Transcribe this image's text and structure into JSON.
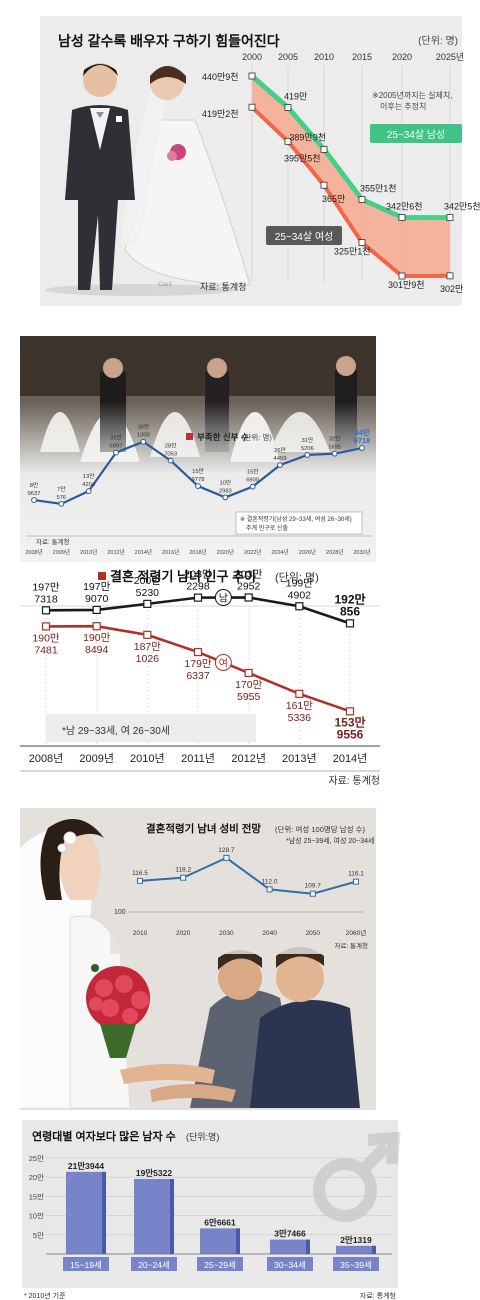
{
  "chart1": {
    "title": "남성 갈수록 배우자 구하기 힘들어진다",
    "unit": "(단위: 명)",
    "note_line1": "※2005년까지는 실제치,",
    "note_line2": "이후는 추정치",
    "source": "자료: 통계청",
    "photo_credit": "Cas1",
    "male_label": "25~34살 남성",
    "female_label": "25~34살 여성",
    "colors": {
      "male": "#45d08a",
      "female": "#f0664a",
      "area": "#f7a98f"
    }
  },
  "chart2": {
    "legend": "부족한 신부 수",
    "unit": "(단위: 명)",
    "note_line1": "※ 결혼적령기(남성 29~33세, 여성 26~30세)",
    "note_line2": "추계 인구로 산출",
    "source": "자료: 통계청",
    "colors": {
      "line": "#2a5a9e",
      "highlight": "#2d6fd1"
    }
  },
  "chart3": {
    "title": "결혼 적령기 남녀 인구 추이",
    "unit": "(단위: 명)",
    "note": "*남 29~33세, 여 26~30세",
    "source": "자료: 통계청",
    "male_marker": "남",
    "female_marker": "여",
    "colors": {
      "male": "#1a1a1a",
      "female": "#b03028",
      "female_text": "#7a1f1a"
    }
  },
  "chart4": {
    "title": "결혼적령기 남녀 성비 전망",
    "unit_note": "(단위: 여성 100명당 남성 수)",
    "sub_note": "*남성 25~39세, 여성 20~34세",
    "baseline_label": "100",
    "source": "자료: 통계청",
    "colors": {
      "line": "#2f6fa8",
      "bg": "#e4e1dc"
    }
  },
  "chart5": {
    "title": "연령대별 여자보다 많은 남자 수",
    "unit": "(단위:명)",
    "footnote": "* 2010년 기준",
    "source": "자료: 통계청",
    "colors": {
      "bar": "#7884c9",
      "bar_dark": "#4b5aa8",
      "bg": "#e8e8e8"
    }
  },
  "chart_data": [
    {
      "type": "line",
      "x": [
        "2000",
        "2005",
        "2010",
        "2015",
        "2020",
        "2025년"
      ],
      "series": [
        {
          "name": "25~34살 남성",
          "values": [
            4409000,
            4190000,
            3899000,
            3551000,
            3426000,
            3425000
          ],
          "labels": [
            "440만9천",
            "419만",
            "389만9천",
            "355만1천",
            "342만6천",
            "342만5천"
          ]
        },
        {
          "name": "25~34살 여성",
          "values": [
            4192000,
            3955000,
            3650000,
            3251000,
            3019000,
            3020000
          ],
          "labels": [
            "419만2천",
            "395만5천",
            "365만",
            "325만1천",
            "301만9천",
            "302만"
          ]
        }
      ]
    },
    {
      "type": "line",
      "x": [
        "2008년",
        "2009년",
        "2010년",
        "2012년",
        "2014년",
        "2016년",
        "2018년",
        "2020년",
        "2022년",
        "2024년",
        "2026년",
        "2028년",
        "2030년"
      ],
      "values": [
        89637,
        70576,
        134204,
        326997,
        381300,
        287053,
        159778,
        102983,
        156900,
        264459,
        315206,
        321695,
        349718
      ],
      "labels": [
        [
          "8만",
          "9637"
        ],
        [
          "7만",
          "576"
        ],
        [
          "13만",
          "4204"
        ],
        [
          "32만",
          "6997"
        ],
        [
          "38만",
          "1300"
        ],
        [
          "28만",
          "7053"
        ],
        [
          "15만",
          "9778"
        ],
        [
          "10만",
          "2983"
        ],
        [
          "15만",
          "6900"
        ],
        [
          "26만",
          "4459"
        ],
        [
          "31만",
          "5206"
        ],
        [
          "32만",
          "1695"
        ],
        [
          "34만",
          "9718"
        ]
      ],
      "ylim": [
        0,
        450000
      ]
    },
    {
      "type": "line",
      "x": [
        "2008년",
        "2009년",
        "2010년",
        "2011년",
        "2012년",
        "2013년",
        "2014년"
      ],
      "series": [
        {
          "name": "남",
          "values": [
            1977318,
            1979070,
            2005230,
            2032298,
            2032952,
            1994902,
            1920856
          ],
          "labels": [
            [
              "197만",
              "7318"
            ],
            [
              "197만",
              "9070"
            ],
            [
              "200만",
              "5230"
            ],
            [
              "203만",
              "2298"
            ],
            [
              "203만",
              "2952"
            ],
            [
              "199만",
              "4902"
            ],
            [
              "192만",
              "856"
            ]
          ]
        },
        {
          "name": "여",
          "values": [
            1907481,
            1908494,
            1871026,
            1796337,
            1705955,
            1615336,
            1539556
          ],
          "labels": [
            [
              "190만",
              "7481"
            ],
            [
              "190만",
              "8494"
            ],
            [
              "187만",
              "1026"
            ],
            [
              "179만",
              "6337"
            ],
            [
              "170만",
              "5955"
            ],
            [
              "161만",
              "5336"
            ],
            [
              "153만",
              "9556"
            ]
          ]
        }
      ],
      "ylim": [
        1450000,
        2100000
      ]
    },
    {
      "type": "line",
      "x": [
        "2010",
        "2020",
        "2030",
        "2040",
        "2050",
        "2060년"
      ],
      "values": [
        116.5,
        118.2,
        128.7,
        112.0,
        109.7,
        116.1
      ],
      "labels": [
        "116.5",
        "118.2",
        "128.7",
        "112.0",
        "109.7",
        "116.1"
      ],
      "ylim": [
        100,
        135
      ]
    },
    {
      "type": "bar",
      "categories": [
        "15~19세",
        "20~24세",
        "25~29세",
        "30~34세",
        "35~39세"
      ],
      "values": [
        213944,
        195322,
        66661,
        37466,
        21319
      ],
      "labels": [
        "21만3944",
        "19만5322",
        "6만6661",
        "3만7466",
        "2만1319"
      ],
      "yticks": [
        "25만",
        "20만",
        "15만",
        "10만",
        "5만"
      ],
      "ytick_values": [
        250000,
        200000,
        150000,
        100000,
        50000
      ],
      "ylim": [
        0,
        250000
      ]
    }
  ]
}
